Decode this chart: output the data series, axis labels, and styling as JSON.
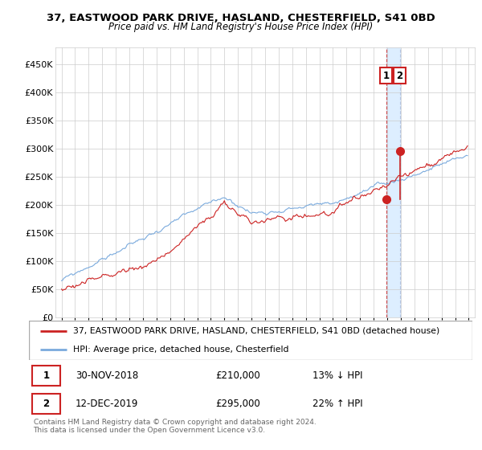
{
  "title": "37, EASTWOOD PARK DRIVE, HASLAND, CHESTERFIELD, S41 0BD",
  "subtitle": "Price paid vs. HM Land Registry's House Price Index (HPI)",
  "hpi_label": "HPI: Average price, detached house, Chesterfield",
  "property_label": "37, EASTWOOD PARK DRIVE, HASLAND, CHESTERFIELD, S41 0BD (detached house)",
  "hpi_color": "#7aaadd",
  "property_color": "#cc2222",
  "annotation_box_color": "#cc2222",
  "vline1_color": "#cc2222",
  "vline2_color": "#aabbdd",
  "span_color": "#ddeeff",
  "background_color": "#ffffff",
  "grid_color": "#cccccc",
  "ylim": [
    0,
    480000
  ],
  "yticks": [
    0,
    50000,
    100000,
    150000,
    200000,
    250000,
    300000,
    350000,
    400000,
    450000
  ],
  "sale1_date": "30-NOV-2018",
  "sale1_price": 210000,
  "sale1_hpi_pct": "13% ↓ HPI",
  "sale1_t": 2018.917,
  "sale2_date": "12-DEC-2019",
  "sale2_price": 295000,
  "sale2_hpi_pct": "22% ↑ HPI",
  "sale2_t": 2019.958,
  "xstart": 1995,
  "xend": 2025,
  "footer": "Contains HM Land Registry data © Crown copyright and database right 2024.\nThis data is licensed under the Open Government Licence v3.0.",
  "legend_border_color": "#aaaaaa",
  "footer_color": "#666666"
}
